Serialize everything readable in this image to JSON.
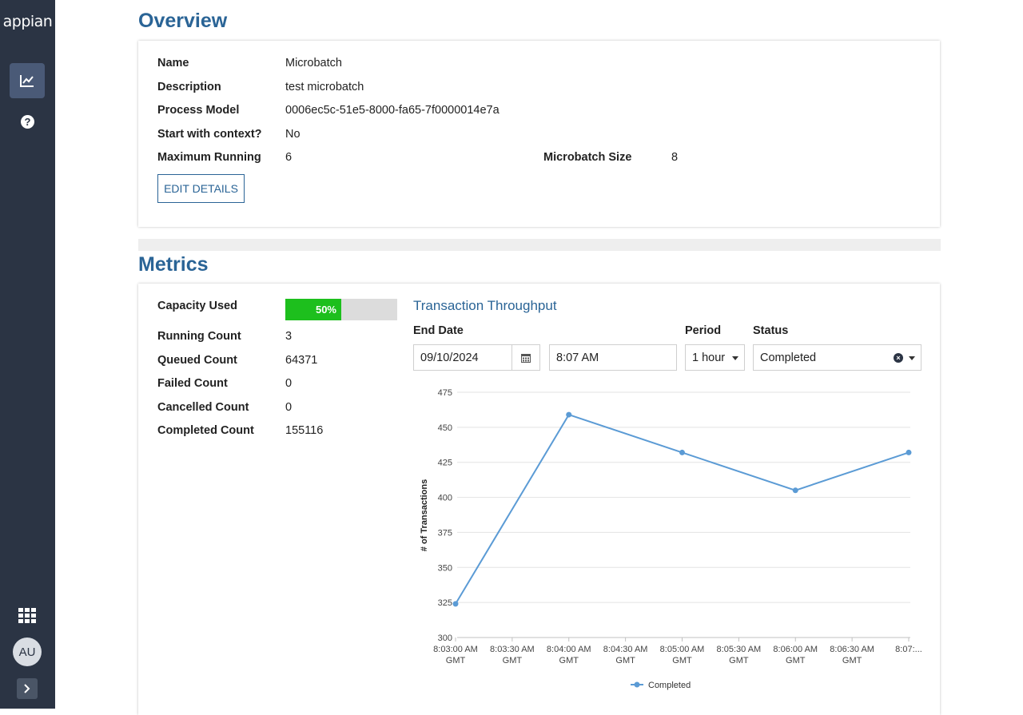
{
  "sidebar": {
    "logo": "appian",
    "avatar_initials": "AU"
  },
  "overview": {
    "title": "Overview",
    "fields": {
      "name_label": "Name",
      "name_value": "Microbatch",
      "description_label": "Description",
      "description_value": "test microbatch",
      "process_model_label": "Process Model",
      "process_model_value": "0006ec5c-51e5-8000-fa65-7f0000014e7a",
      "start_context_label": "Start with context?",
      "start_context_value": "No",
      "max_running_label": "Maximum Running",
      "max_running_value": "6",
      "microbatch_size_label": "Microbatch Size",
      "microbatch_size_value": "8"
    },
    "edit_button": "EDIT DETAILS"
  },
  "metrics": {
    "title": "Metrics",
    "capacity_label": "Capacity Used",
    "capacity_percent": 50,
    "capacity_text": "50%",
    "running_label": "Running Count",
    "running_value": "3",
    "queued_label": "Queued Count",
    "queued_value": "64371",
    "failed_label": "Failed Count",
    "failed_value": "0",
    "cancelled_label": "Cancelled Count",
    "cancelled_value": "0",
    "completed_label": "Completed Count",
    "completed_value": "155116"
  },
  "throughput": {
    "title": "Transaction Throughput",
    "end_date_label": "End Date",
    "end_date_value": "09/10/2024",
    "end_time_value": "8:07 AM",
    "period_label": "Period",
    "period_value": "1 hour",
    "status_label": "Status",
    "status_value": "Completed"
  },
  "chart_data": {
    "type": "line",
    "ylabel": "# of Transactions",
    "xlabel": "",
    "ylim": [
      300,
      475
    ],
    "yticks": [
      300,
      325,
      350,
      375,
      400,
      425,
      450,
      475
    ],
    "x_ticks": [
      [
        "8:03:00 AM",
        "GMT"
      ],
      [
        "8:03:30 AM",
        "GMT"
      ],
      [
        "8:04:00 AM",
        "GMT"
      ],
      [
        "8:04:30 AM",
        "GMT"
      ],
      [
        "8:05:00 AM",
        "GMT"
      ],
      [
        "8:05:30 AM",
        "GMT"
      ],
      [
        "8:06:00 AM",
        "GMT"
      ],
      [
        "8:06:30 AM",
        "GMT"
      ],
      [
        "8:07:...",
        ""
      ]
    ],
    "series": [
      {
        "name": "Completed",
        "color": "#5b9bd5",
        "x": [
          "8:03:00 AM GMT",
          "8:04:00 AM GMT",
          "8:05:00 AM GMT",
          "8:06:00 AM GMT",
          "8:07:00 AM GMT"
        ],
        "tick_index": [
          0,
          2,
          4,
          6,
          8
        ],
        "values": [
          324,
          459,
          432,
          405,
          432
        ]
      }
    ],
    "grid": true,
    "legend": "bottom"
  }
}
